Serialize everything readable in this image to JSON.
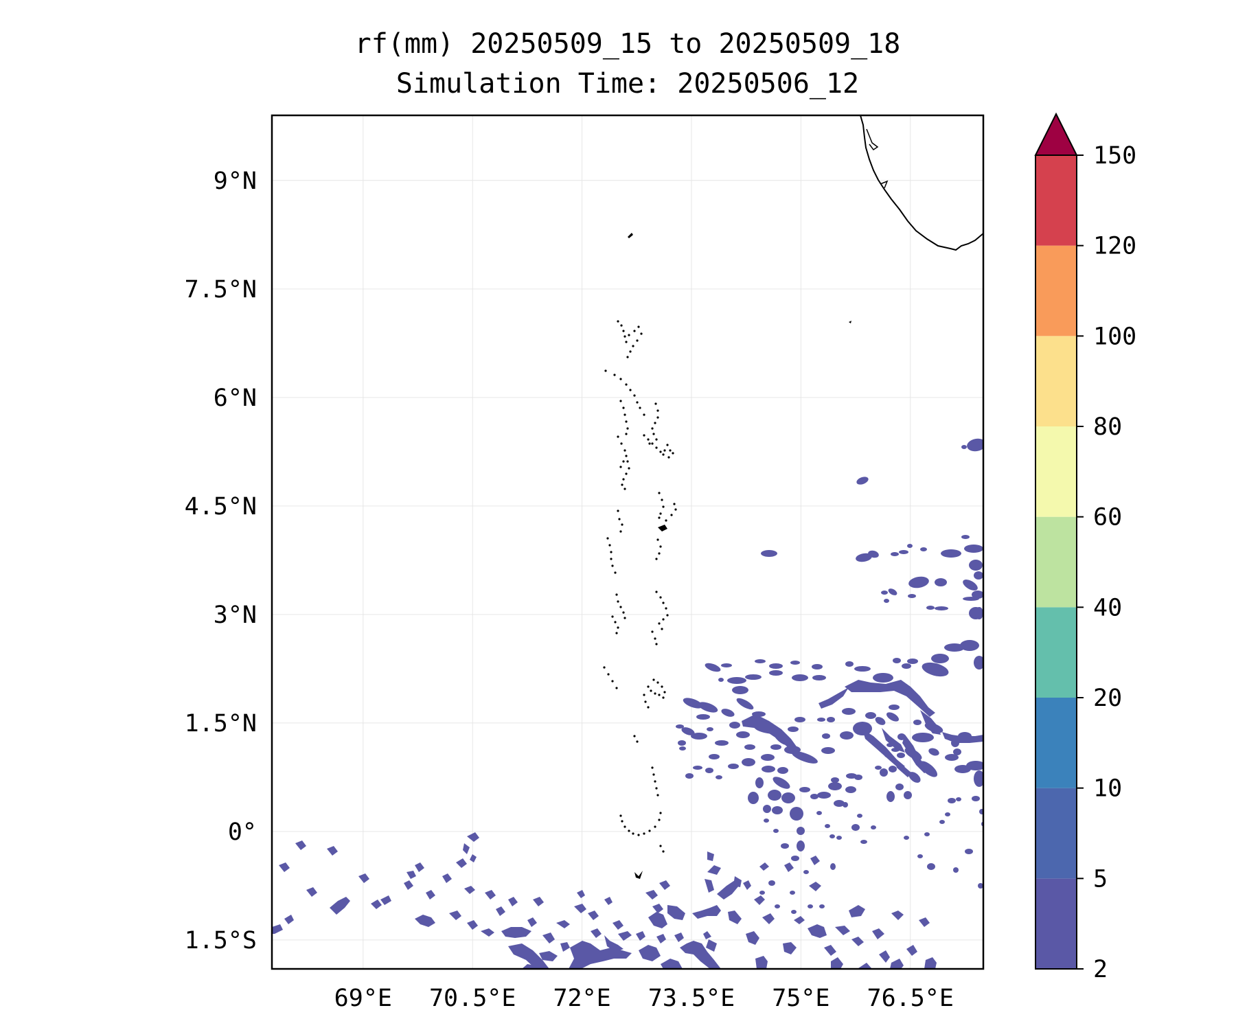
{
  "title": {
    "line1": "rf(mm) 20250509_15 to 20250509_18",
    "line2": "Simulation Time: 20250506_12"
  },
  "map": {
    "lon_range": [
      67.75,
      77.5
    ],
    "lat_range": [
      -1.9,
      9.9
    ],
    "x_ticks": [
      {
        "value": 69,
        "label": "69°E"
      },
      {
        "value": 70.5,
        "label": "70.5°E"
      },
      {
        "value": 72,
        "label": "72°E"
      },
      {
        "value": 73.5,
        "label": "73.5°E"
      },
      {
        "value": 75,
        "label": "75°E"
      },
      {
        "value": 76.5,
        "label": "76.5°E"
      }
    ],
    "y_ticks": [
      {
        "value": 9,
        "label": "9°N"
      },
      {
        "value": 7.5,
        "label": "7.5°N"
      },
      {
        "value": 6,
        "label": "6°N"
      },
      {
        "value": 4.5,
        "label": "4.5°N"
      },
      {
        "value": 3,
        "label": "3°N"
      },
      {
        "value": 1.5,
        "label": "1.5°N"
      },
      {
        "value": 0,
        "label": "0°"
      },
      {
        "value": -1.5,
        "label": "1.5°S"
      }
    ],
    "gridlines": true,
    "gridline_color": "#e6e6e6",
    "coastline_color": "#000000",
    "rain_color": "#5a58a6"
  },
  "colorbar": {
    "levels": [
      "2",
      "5",
      "10",
      "20",
      "40",
      "60",
      "80",
      "100",
      "120",
      "150"
    ],
    "colors": [
      "#5a58a6",
      "#4c67ae",
      "#3b82bb",
      "#64bfac",
      "#bde3a0",
      "#f4f9ad",
      "#fce08c",
      "#f99b5a",
      "#d5414e"
    ],
    "extend_color": "#9e0142",
    "extend": "max"
  }
}
